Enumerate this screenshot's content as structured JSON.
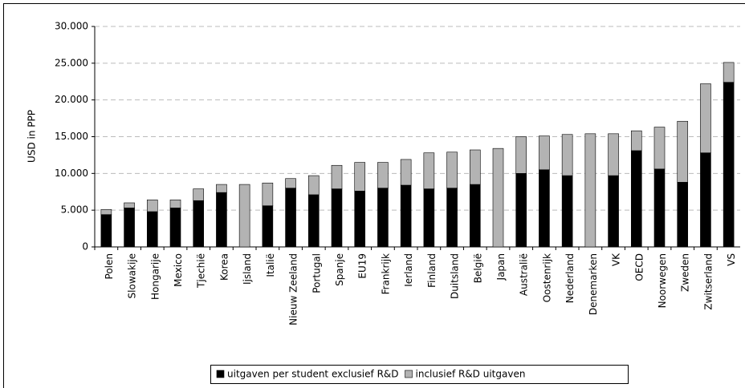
{
  "chart_data": {
    "type": "stacked-bar",
    "y_label": "USD in PPP",
    "categories": [
      "Polen",
      "Slowakije",
      "Hongarije",
      "Mexico",
      "Tjechië",
      "Korea",
      "Ijsland",
      "Italië",
      "Nieuw Zeeland",
      "Portugal",
      "Spanje",
      "EU19",
      "Frankrijk",
      "Ierland",
      "Finland",
      "Duitsland",
      "België",
      "Japan",
      "Australië",
      "Oostenrijk",
      "Nederland",
      "Denemarken",
      "VK",
      "OECD",
      "Noorwegen",
      "Zweden",
      "Zwitserland",
      "VS"
    ],
    "series": [
      {
        "name": "uitgaven per student exclusief R&D",
        "color": "#000000",
        "values": [
          4400,
          5300,
          4800,
          5300,
          6300,
          7400,
          null,
          5600,
          8000,
          7100,
          7900,
          7600,
          8000,
          8400,
          7900,
          8000,
          8500,
          null,
          10000,
          10500,
          9700,
          null,
          9700,
          13100,
          10600,
          8800,
          12800,
          22400
        ]
      },
      {
        "name": "inclusief R&D uitgaven",
        "color": "#b3b3b3",
        "values": [
          700,
          700,
          1600,
          1100,
          1600,
          1100,
          8500,
          3100,
          1300,
          2600,
          3200,
          3900,
          3500,
          3500,
          4900,
          4900,
          4700,
          13400,
          5000,
          4600,
          5600,
          15400,
          5700,
          2700,
          5700,
          8300,
          9400,
          2700
        ]
      }
    ],
    "ylim": [
      0,
      30000
    ],
    "yticks": [
      0,
      {
        "value": 5000,
        "label": "5.000"
      },
      {
        "value": 10000,
        "label": "10.000"
      },
      {
        "value": 15000,
        "label": "15.000"
      },
      {
        "value": 20000,
        "label": "20.000"
      },
      {
        "value": 25000,
        "label": "25.000"
      },
      {
        "value": 30000,
        "label": "30.000"
      }
    ],
    "grid": true,
    "legend": "bottom"
  }
}
